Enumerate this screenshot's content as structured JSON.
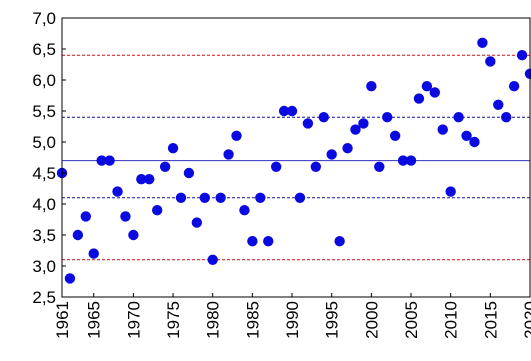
{
  "chart_data": {
    "type": "scatter",
    "title": "",
    "xlabel": "",
    "ylabel": "",
    "xlim": [
      1961,
      2020
    ],
    "ylim": [
      2.5,
      7.0
    ],
    "grid": false,
    "legend": "none",
    "marker_color": "#0a0ae0",
    "y_ticks": [
      2.5,
      3.0,
      3.5,
      4.0,
      4.5,
      5.0,
      5.5,
      6.0,
      6.5,
      7.0
    ],
    "y_tick_labels": [
      "2,5",
      "3,0",
      "3,5",
      "4,0",
      "4,5",
      "5,0",
      "5,5",
      "6,0",
      "6,5",
      "7,0"
    ],
    "x_ticks": [
      1961,
      1965,
      1970,
      1975,
      1980,
      1985,
      1990,
      1995,
      2000,
      2005,
      2010,
      2015,
      2020
    ],
    "x_tick_labels": [
      "1961",
      "1965",
      "1970",
      "1975",
      "1980",
      "1985",
      "1990",
      "1995",
      "2000",
      "2005",
      "2010",
      "2015",
      "2020"
    ],
    "reference_lines": [
      {
        "y": 6.4,
        "style": "dashed",
        "color": "#d01010"
      },
      {
        "y": 5.4,
        "style": "dashed",
        "color": "#1010a0"
      },
      {
        "y": 4.7,
        "style": "solid",
        "color": "#3030c0"
      },
      {
        "y": 4.1,
        "style": "dashed",
        "color": "#1010a0"
      },
      {
        "y": 3.1,
        "style": "dashed",
        "color": "#d01010"
      }
    ],
    "series": [
      {
        "x": [
          1961,
          1962,
          1963,
          1964,
          1965,
          1966,
          1967,
          1968,
          1969,
          1970,
          1971,
          1972,
          1973,
          1974,
          1975,
          1976,
          1977,
          1978,
          1979,
          1980,
          1981,
          1982,
          1983,
          1984,
          1985,
          1986,
          1987,
          1988,
          1989,
          1990,
          1991,
          1992,
          1993,
          1994,
          1995,
          1996,
          1997,
          1998,
          1999,
          2000,
          2001,
          2002,
          2003,
          2004,
          2005,
          2006,
          2007,
          2008,
          2009,
          2010,
          2011,
          2012,
          2013,
          2014,
          2015,
          2016,
          2017,
          2018,
          2019,
          2020
        ],
        "y": [
          4.5,
          2.8,
          3.5,
          3.8,
          3.2,
          4.7,
          4.7,
          4.2,
          3.8,
          3.5,
          4.4,
          4.4,
          3.9,
          4.6,
          4.9,
          4.1,
          4.5,
          3.7,
          4.1,
          3.1,
          4.1,
          4.8,
          5.1,
          3.9,
          3.4,
          4.1,
          3.4,
          4.6,
          5.5,
          5.5,
          4.1,
          5.3,
          4.6,
          5.4,
          4.8,
          3.4,
          4.9,
          5.2,
          5.3,
          5.9,
          4.6,
          5.4,
          5.1,
          4.7,
          4.7,
          5.7,
          5.9,
          5.8,
          5.2,
          4.2,
          5.4,
          5.1,
          5.0,
          6.6,
          6.3,
          5.6,
          5.4,
          5.9,
          6.4,
          6.1
        ]
      }
    ]
  }
}
